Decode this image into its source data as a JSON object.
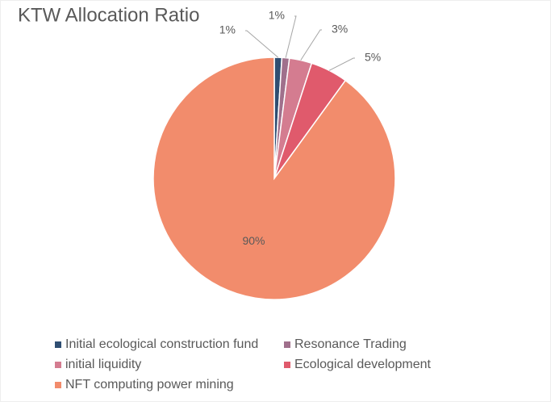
{
  "chart_data": {
    "type": "pie",
    "title": "KTW Allocation Ratio",
    "categories": [
      "Initial ecological construction fund",
      "Resonance Trading",
      "initial liquidity",
      "Ecological development",
      "NFT computing power mining"
    ],
    "values": [
      1,
      1,
      3,
      5,
      90
    ],
    "value_labels": [
      "1%",
      "1%",
      "3%",
      "5%",
      "90%"
    ],
    "colors": [
      "#2f4e72",
      "#a0708c",
      "#d47c90",
      "#e05a6c",
      "#f28c6c"
    ]
  }
}
